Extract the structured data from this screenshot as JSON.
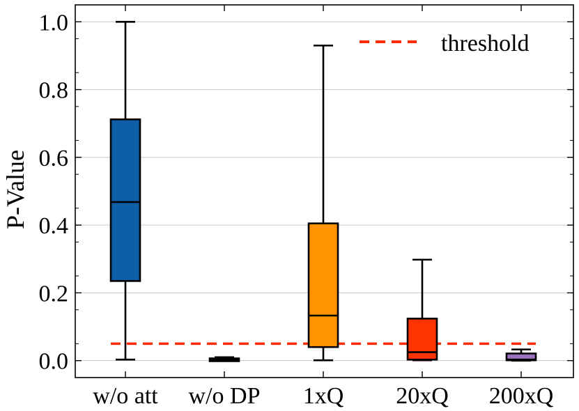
{
  "chart_data": {
    "type": "box",
    "title": "",
    "xlabel": "",
    "ylabel": "P-Value",
    "ylim": [
      -0.05,
      1.05
    ],
    "yticks": [
      "0.0",
      "0.2",
      "0.4",
      "0.6",
      "0.8",
      "1.0"
    ],
    "grid": "horizontal",
    "legend": {
      "position": "top-right",
      "entries": [
        {
          "label": "threshold",
          "style": "dashed",
          "color": "#ff2a00"
        }
      ]
    },
    "threshold": 0.05,
    "categories": [
      "w/o att",
      "w/o DP",
      "1xQ",
      "20xQ",
      "200xQ"
    ],
    "boxes": [
      {
        "label": "w/o att",
        "color": "#0f5ea8",
        "whisker_low": 0.003,
        "q1": 0.235,
        "median": 0.468,
        "q3": 0.712,
        "whisker_high": 1.0
      },
      {
        "label": "w/o DP",
        "color": "#7a4fa0",
        "whisker_low": 0.0,
        "q1": 0.001,
        "median": 0.002,
        "q3": 0.004,
        "whisker_high": 0.01
      },
      {
        "label": "1xQ",
        "color": "#ff9400",
        "whisker_low": 0.001,
        "q1": 0.04,
        "median": 0.133,
        "q3": 0.405,
        "whisker_high": 0.93
      },
      {
        "label": "20xQ",
        "color": "#ff3300",
        "whisker_low": 0.001,
        "q1": 0.003,
        "median": 0.025,
        "q3": 0.124,
        "whisker_high": 0.298
      },
      {
        "label": "200xQ",
        "color": "#9a74bf",
        "whisker_low": 0.0,
        "q1": 0.001,
        "median": 0.003,
        "q3": 0.021,
        "whisker_high": 0.033
      }
    ]
  }
}
